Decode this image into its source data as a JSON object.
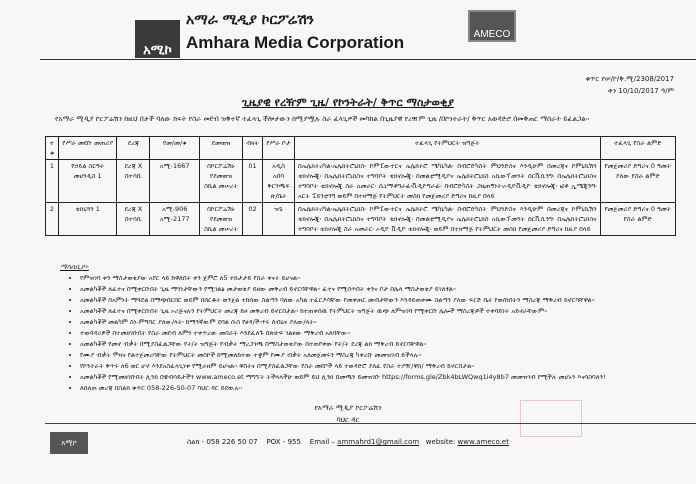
{
  "header": {
    "logo_text": "አሚኮ",
    "org_amharic": "አማራ ሚዲያ ኮርፖሬሽን",
    "org_english": "Amhara Media Corporation",
    "badge": "AMECO"
  },
  "ref": {
    "number": "ቁጥር የሠ/ኮ/ቅ.ሚ/2308/2017",
    "date": "ቀን 10/10/2017 ዓ/ም"
  },
  "title": "ጊዜያዊ የረዥም ጊዜ/ የኮንትራት/ ቅጥር ማስታወቂያ",
  "intro": "የአማራ ሚዲያ ኮርፖሬሽን ከዚህ በታች ባለው ክፍት የስራ መደብ ዝቅተኛ ተፈላጊ ችሎታውን ከሚያሟሉ ስራ ፈላጊዎች መካከል በጊዜያዊ የረዥም ጊዜ /በኮንትራት/ ቅጥር አወዳድሮ በመቅጠር ማሰራት ይፈልጋል፡፡",
  "table": {
    "headers": [
      "ተ ቁ",
      "የሥራ መደቡ መጠሪያ",
      "ደረጃ",
      "የመ/መ/ቁ",
      "ደመወዝ",
      "ብዛት",
      "የሥራ ቦታ",
      "ተፈላጊ የትምህርት ዝግጅት",
      "ተፈላጊ የስራ ልምድ"
    ],
    "rows": [
      [
        "1",
        "የኃይል ስርዓት መሀንዲስ 1",
        "ደረጃ X በተሳቢ",
        "አሚ-1667",
        "በኮርፖሬሽኑ የደመወዝ ስኬል መሠረት",
        "01",
        "አዲስ አበባ ቅርንጫፍ ጽ/ቤት",
        "በኤሌክትሪካል፡ኤሌክትሮኒክስ፡ ኮምፒውተርና ኤሌክትሮ ሜካኒካል፡ በብሮድካስት ምህንድስና እንዲሁም በመረጃና ኮምኒኬሽን ቴክኖሎጂ፡ በኤሌክትሮኒክስና ተግባቦት ቴክኖሎጂ፡ በመልቲሚዲያና ኤሌክትሮኒክስ አኪውፕመንት ሰርቪሲንግ፡ በኤሌክትሮኒክስና ተግባቦት ቴክኖሎጂ ስራ አመራር፡ ሲኒማቶግራፊ፡ቪዲዮግራፊ፡ በብሮድካስት ጋዜጠኝነት፡ኦዲዮቪዲዮ ቴክኖሎጂ፡ ፎቶ ኢሜጂንግ፡ አርት ፔይንቲንግ ወይም በተዛማጅ የትምህርት መስክ የመጀመሪያ ድግሪና ከዚያ በላይ",
        "የመጀመሪያ ድግሪና 0 ዓመት ያለው የስራ ልምድ"
      ],
      [
        "2",
        "ቴክኒሻን 1",
        "ደረጃ X በተሳቢ",
        "አሚ-906 አሚ-2177",
        "በኮርፖሬሽኑ የደመወዝ ስኬል መሠረት",
        "02",
        "ዝጌ",
        "በኤሌክትሪካል፡ኤሌክትሮኒክስ፡ ኮምፒውተርና ኤሌክትሮ ሜካኒካል፡ በብሮድካስት ምህንድስና እንዲሁም በመረጃና ኮምኒኬሽን ቴክኖሎጂ፡ በኤሌክትሮኒክስና ተግባቦት ቴክኖሎጂ፡ በመልቲሚዲያና ኤሌክትሮኒክስ አኪውፕመንት ሰርቪሲንግ፡ በኤሌክትሮኒክስና ተግባቦት ቴክኖሎጂ ስራ አመራር፡ ኦዲዮ ቪዲዮ ቴክኖሎጂ፡ ወይም በተዛማጅ የትምህርት መስክ የመጀመሪያ ድግሪና ከዚያ በላይ",
        "የመጀመሪያ ድግሪና 0 ዓመት የስራ ልምድ"
      ]
    ]
  },
  "notes": {
    "title": "ማሳሰቢያ፡-",
    "items": [
      "የምዝገባ ቀን ማስታወቂያው አየር ላይ ከዋለበት ቀን ጀምሮ ለ5 ተከታታይ የስራ ቀናት ይሆናል፡፡",
      "አመልካቾች ለፈተና በሚቀርቡበት ጊዜ ማንነታቸውን የሚገልፅ መታወቂያ ይዘው መቅረብ ይኖርባቸዋል፡፡ ፈተና የሚሰጥበት ቀንና ቦታ በሌላ ማስታወቂያ ይገለፃል፡፡",
      "አመልካቾች በአምነት ማጓደል በማጭበርበር ወይም በሰርቆት ወንጀል ተከሰው ስልጣን ባለው አካል ተፈርዶባቸው የመቀጠር መብታቸውን እንዳይጠቀሙ ስልጣን ያለው ፍርድ ቤት የወሰነበትን ማስረጃ ማቅረብ ይኖርባቸዋል፡፡",
      "አመልካቾች ለፈተና በሚቀርቡበት ጊዜ ኦሪጅናሉን የትምህርት መረጃ ይዞ መቅረብ ይኖርበታል፡፡ ከተጠቀሰዉ የትምህርት ዝግጅት ዉጭ ለምዝገባ የሚቀርቡ ሌሎች ማስረጃዎች ተቀባይነት አይኖራቸውም፡፡",
      "አመልካቾች መልካም ስነ-ምግባር ያለው/ላት፡ ከማንኛውም ደባል ሱስ የፀዳ/ች፡ጥሩ ሰብዕና ያለው/ላት፡፡",
      "ተወዳዳሪዎች በተመዘገቡበት የስራ መደብ ለምን ተቀጥረው መስራት እንደፈለጉ በጽሁፍ ገልፀው ማቅረብ አለባቸው፡፡",
      "አመልካቾች የመኖ ብቃት በሚያስፈልጋቸው የት/ት ዝግጅት የብቃት ማረጋገጫ በማስታወቂያው በተጠየቀው የት/ት ደረጃ ልክ ማቅረብ ይኖርባቸዋል፡፡",
      "የሙያ ብቃት ሞዛና የልተጀመረባቸው የትምህርት መስኮች ከሚመለከተው ተቋም የሙያ ብቃት አለመጀመሩን ማስረጃ ካቀረቡ መመዝገብ ይችላሉ፡፡",
      "የኮንትራት ቅጥሩ ለ6 ወር ሆኖ እንደአስፈላጊነቱ የሚራዘም ይሆናል፡፡ ዋስትና በሚያስፈልጋቸው የስራ መደቦች ላይ ተወዳድሮ ያለፈ የስራ ተያዥ/ዋስ/ ማቅረብ ይኖርበታል፡፡",
      "አመልካቾች የሚመዘገቡበት ሊንክ በዌብሳይታችን www.ameco.et ማግኘት ትችላላችሁ ወይም ይህ ሊንክ በመጫን ይመዝገቡ https://forms.gle/Zbk4bLWQwq1i4y8b7 መመዝገብ የሚችሉ መሆኑን እናሳስባለን!",
      "ለበለጠ መረጃ በስልክ ቁጥር 058-226-50-07 ባህር ዳር ይደውሉ፡፡"
    ]
  },
  "signature": {
    "org": "የአማራ ሚዲያ ኮርፖሬሽን",
    "city": "ባህር ዳር"
  },
  "footer": {
    "phone": "ስልክ - 058 226 50 07",
    "pobox": "POX - 955",
    "email_label": "Email –",
    "email": "ammahrd1@gmail.com",
    "website_label": "website:",
    "website": "www.ameco.et"
  }
}
